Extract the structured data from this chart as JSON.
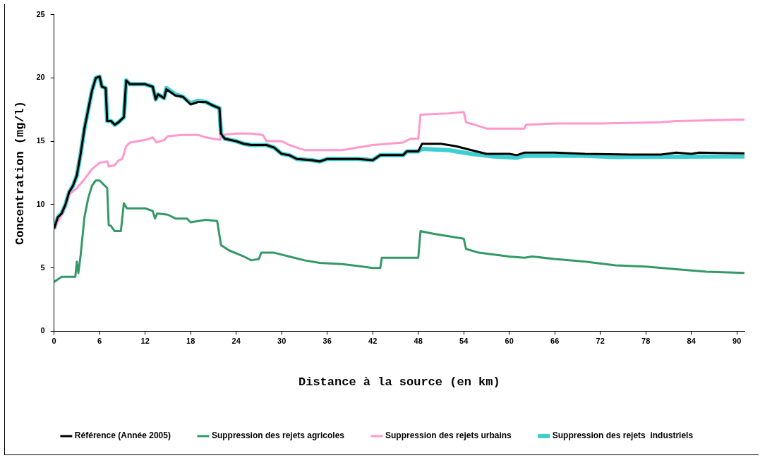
{
  "chart_data": {
    "type": "line",
    "xlabel": "Distance à la source (en km)",
    "ylabel": "Concentration (mg/l)",
    "xlim": [
      0,
      91
    ],
    "xticks": [
      0,
      6,
      12,
      18,
      24,
      30,
      36,
      42,
      48,
      54,
      60,
      66,
      72,
      78,
      84,
      90
    ],
    "ylim": [
      0,
      25
    ],
    "yticks": [
      0,
      5,
      10,
      15,
      20,
      25
    ],
    "grid": false,
    "legend": "bottom",
    "marker": "none",
    "line_style": "solid",
    "series": [
      {
        "name": "Suppression des rejets  industriels",
        "color": "#3ccfcf",
        "x": [
          0,
          0.5,
          1,
          1.5,
          2,
          2.5,
          3,
          3.5,
          4,
          4.5,
          5,
          5.5,
          6,
          6.3,
          6.8,
          7,
          7.5,
          8,
          8.5,
          9.2,
          9.5,
          10,
          12,
          13,
          13.4,
          13.7,
          14.5,
          14.8,
          16,
          17,
          18,
          19,
          20,
          21,
          21.8,
          22,
          22.5,
          24,
          25,
          26,
          28,
          29,
          30,
          31,
          32,
          34,
          35,
          36,
          40,
          42,
          43,
          46,
          46.5,
          48,
          48.5,
          52,
          55,
          58,
          61,
          62,
          70,
          74,
          91
        ],
        "values": [
          8.1,
          9,
          9.3,
          10,
          11,
          11.5,
          12.3,
          14,
          16,
          17.5,
          19,
          20,
          20.1,
          19.3,
          19.2,
          16.6,
          16.6,
          16.3,
          16.5,
          16.9,
          19.8,
          19.5,
          19.5,
          19.3,
          18.3,
          18.7,
          18.4,
          19.2,
          18.7,
          18.5,
          18.0,
          18.2,
          18.1,
          17.8,
          17.6,
          15.6,
          15.2,
          15.0,
          14.8,
          14.7,
          14.7,
          14.5,
          14.0,
          13.9,
          13.6,
          13.5,
          13.4,
          13.6,
          13.6,
          13.5,
          13.9,
          13.9,
          14.2,
          14.2,
          14.4,
          14.3,
          14.0,
          13.8,
          13.7,
          13.85,
          13.85,
          13.75,
          13.8
        ]
      },
      {
        "name": "Suppression des rejets urbains",
        "color": "#ff99cc",
        "x": [
          0,
          1,
          2,
          3,
          4,
          5,
          6,
          7,
          7.2,
          8,
          8.5,
          9,
          9.5,
          10,
          12,
          13,
          13.5,
          14.5,
          15,
          17,
          19,
          20,
          21.9,
          22,
          24,
          26,
          27.5,
          28,
          30,
          31,
          32,
          33,
          38,
          40,
          42,
          46,
          47,
          48,
          48.3,
          52,
          54,
          54.3,
          56,
          57,
          62,
          62.2,
          66,
          72,
          80,
          82,
          90,
          91
        ],
        "values": [
          8.1,
          9.2,
          10.8,
          11.3,
          12,
          12.8,
          13.3,
          13.4,
          13.0,
          13.1,
          13.5,
          13.6,
          14.6,
          14.9,
          15.1,
          15.3,
          14.9,
          15.1,
          15.4,
          15.5,
          15.5,
          15.3,
          15.1,
          15.5,
          15.6,
          15.6,
          15.5,
          15.0,
          15.0,
          14.7,
          14.5,
          14.3,
          14.3,
          14.5,
          14.7,
          14.9,
          15.2,
          15.2,
          17.1,
          17.2,
          17.3,
          16.5,
          16.2,
          16.0,
          16.0,
          16.3,
          16.4,
          16.4,
          16.5,
          16.6,
          16.7,
          16.7
        ]
      },
      {
        "name": "Suppression des rejets agricoles",
        "color": "#339966",
        "x": [
          0,
          1,
          2,
          2.8,
          3,
          3.2,
          3.5,
          4,
          4.5,
          5,
          5.5,
          6,
          6.5,
          7,
          7.2,
          7.5,
          8,
          8.8,
          9.2,
          9.6,
          12,
          13,
          13.3,
          13.6,
          15,
          16,
          17.5,
          18,
          20,
          21.5,
          22,
          23,
          25,
          26,
          27,
          27.3,
          29,
          31,
          33,
          35,
          38,
          42,
          43,
          43.2,
          46,
          48,
          48.3,
          50,
          53,
          54,
          54.3,
          56,
          60,
          62,
          63,
          66,
          70,
          74,
          78,
          82,
          86,
          91
        ],
        "values": [
          3.9,
          4.3,
          4.3,
          4.3,
          5.5,
          4.6,
          6,
          9,
          10.5,
          11.5,
          11.9,
          11.9,
          11.6,
          11.3,
          8.4,
          8.3,
          7.9,
          7.9,
          10.1,
          9.7,
          9.7,
          9.5,
          8.9,
          9.3,
          9.2,
          8.9,
          8.9,
          8.6,
          8.8,
          8.7,
          6.8,
          6.4,
          5.9,
          5.6,
          5.7,
          6.2,
          6.2,
          5.9,
          5.6,
          5.4,
          5.3,
          5.0,
          5.0,
          5.8,
          5.8,
          5.8,
          7.9,
          7.7,
          7.4,
          7.3,
          6.5,
          6.2,
          5.9,
          5.8,
          5.9,
          5.7,
          5.5,
          5.2,
          5.1,
          4.9,
          4.7,
          4.6
        ]
      },
      {
        "name": "Référence (Année 2005)",
        "color": "#000000",
        "x": [
          0,
          0.5,
          1,
          1.5,
          2,
          2.5,
          3,
          3.5,
          4,
          4.5,
          5,
          5.5,
          6,
          6.3,
          6.8,
          7,
          7.5,
          8,
          8.5,
          9.2,
          9.5,
          10,
          12,
          13,
          13.4,
          13.7,
          14.5,
          14.8,
          16,
          17,
          18,
          19,
          20,
          21,
          21.8,
          22,
          22.5,
          24,
          25,
          26,
          28,
          29,
          30,
          31,
          32,
          34,
          35,
          36,
          40,
          42,
          43,
          46,
          46.5,
          48,
          48.5,
          51,
          53,
          55,
          57,
          60,
          61,
          62,
          66,
          70,
          76,
          80,
          82,
          84,
          85,
          91
        ],
        "values": [
          8.1,
          9,
          9.3,
          10,
          11,
          11.5,
          12.3,
          14,
          16,
          17.5,
          19,
          20,
          20.1,
          19.3,
          19.2,
          16.6,
          16.6,
          16.3,
          16.5,
          16.9,
          19.8,
          19.5,
          19.5,
          19.3,
          18.3,
          18.7,
          18.4,
          19.1,
          18.6,
          18.5,
          17.9,
          18.1,
          18.1,
          17.8,
          17.6,
          15.6,
          15.2,
          15.0,
          14.8,
          14.7,
          14.7,
          14.5,
          14.0,
          13.9,
          13.6,
          13.5,
          13.4,
          13.6,
          13.6,
          13.5,
          13.9,
          13.9,
          14.2,
          14.2,
          14.8,
          14.8,
          14.6,
          14.3,
          14.0,
          14.0,
          13.9,
          14.1,
          14.1,
          14.0,
          13.95,
          13.95,
          14.1,
          14.0,
          14.1,
          14.05
        ]
      }
    ]
  }
}
